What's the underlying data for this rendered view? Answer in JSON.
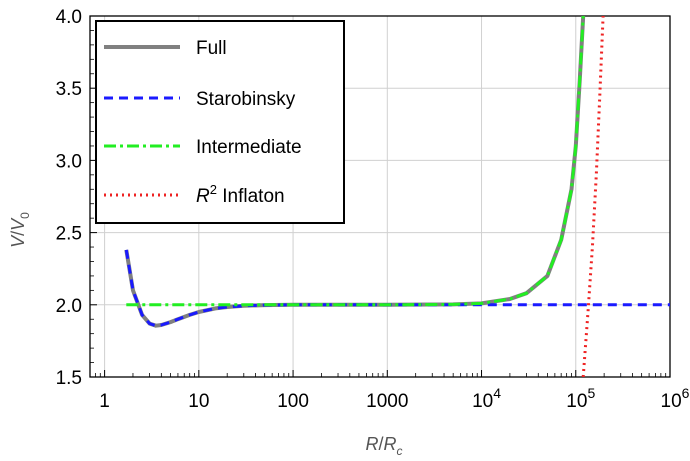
{
  "chart_data": {
    "type": "line",
    "xlabel": "R/Rc",
    "ylabel": "V/V0",
    "xscale": "log",
    "xlim": [
      0.7,
      1000000
    ],
    "ylim": [
      1.5,
      4.0
    ],
    "xticks": [
      1,
      10,
      100,
      1000,
      10000,
      100000,
      1000000
    ],
    "xtick_labels": [
      "1",
      "10",
      "100",
      "1000",
      "10^4",
      "10^5",
      "10^6"
    ],
    "yticks": [
      1.5,
      2.0,
      2.5,
      3.0,
      3.5,
      4.0
    ],
    "ytick_labels": [
      "1.5",
      "2.0",
      "2.5",
      "3.0",
      "3.5",
      "4.0"
    ],
    "grid": true,
    "legend_position": "top-left",
    "series": [
      {
        "name": "Full",
        "color": "#808080",
        "style": "solid",
        "x": [
          1.7,
          2,
          2.5,
          3,
          3.5,
          4,
          5,
          6,
          8,
          10,
          15,
          20,
          30,
          50,
          100,
          1000,
          5000,
          10000,
          20000,
          30000,
          50000,
          70000,
          90000,
          100000,
          110000,
          120000
        ],
        "y": [
          2.38,
          2.1,
          1.93,
          1.87,
          1.855,
          1.86,
          1.88,
          1.9,
          1.93,
          1.95,
          1.975,
          1.985,
          1.993,
          1.998,
          2.0,
          2.0,
          2.003,
          2.01,
          2.04,
          2.08,
          2.2,
          2.45,
          2.8,
          3.1,
          3.55,
          4.0
        ]
      },
      {
        "name": "Starobinsky",
        "color": "#1a1aff",
        "style": "dashed",
        "x": [
          1.7,
          2,
          2.5,
          3,
          3.5,
          4,
          5,
          6,
          8,
          10,
          15,
          20,
          30,
          50,
          100,
          1000,
          10000,
          100000,
          1000000
        ],
        "y": [
          2.38,
          2.1,
          1.93,
          1.87,
          1.855,
          1.86,
          1.88,
          1.9,
          1.93,
          1.95,
          1.975,
          1.985,
          1.993,
          1.998,
          2.0,
          2.0,
          2.0,
          2.0,
          2.0
        ]
      },
      {
        "name": "Intermediate",
        "color": "#22ee22",
        "style": "dashdot",
        "x": [
          1.7,
          10,
          100,
          1000,
          5000,
          10000,
          20000,
          30000,
          50000,
          70000,
          90000,
          100000,
          110000,
          120000
        ],
        "y": [
          2.0,
          2.0,
          2.0,
          2.0,
          2.003,
          2.01,
          2.04,
          2.08,
          2.2,
          2.45,
          2.8,
          3.1,
          3.55,
          4.0
        ]
      },
      {
        "name": "R^2 Inflaton",
        "color": "#ee2222",
        "style": "dotted",
        "x": [
          120000,
          135000,
          150000,
          165000,
          180000,
          195000
        ],
        "y": [
          1.5,
          1.95,
          2.4,
          2.9,
          3.45,
          4.0
        ]
      }
    ]
  }
}
